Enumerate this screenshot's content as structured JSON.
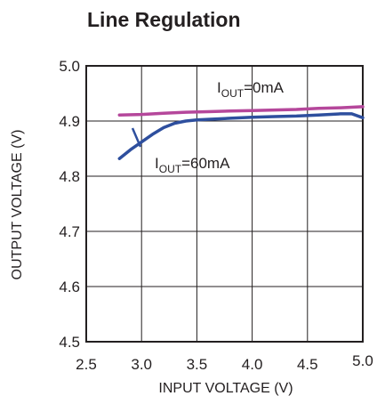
{
  "chart_data": {
    "type": "line",
    "title": "Line Regulation",
    "xlabel": "INPUT VOLTAGE (V)",
    "ylabel": "OUTPUT VOLTAGE (V)",
    "xlim": [
      2.5,
      5.0
    ],
    "ylim": [
      4.5,
      5.0
    ],
    "x_ticks": [
      "2.5",
      "3.0",
      "3.5",
      "4.0",
      "4.5",
      "5.0"
    ],
    "y_ticks": [
      "5.0",
      "4.9",
      "4.8",
      "4.7",
      "4.6",
      "4.5"
    ],
    "grid": true,
    "series": [
      {
        "name": "I_OUT=0mA",
        "color": "#b5479b",
        "x": [
          2.8,
          3.0,
          3.2,
          3.4,
          3.6,
          3.8,
          4.0,
          4.2,
          4.4,
          4.6,
          4.8,
          5.0
        ],
        "y": [
          4.911,
          4.912,
          4.914,
          4.916,
          4.917,
          4.918,
          4.919,
          4.92,
          4.921,
          4.923,
          4.924,
          4.926
        ]
      },
      {
        "name": "I_OUT=60mA",
        "color": "#2e4f9e",
        "x": [
          2.8,
          2.9,
          3.0,
          3.1,
          3.2,
          3.3,
          3.4,
          3.5,
          3.6,
          3.8,
          4.0,
          4.2,
          4.4,
          4.6,
          4.8,
          4.9,
          5.0
        ],
        "y": [
          4.832,
          4.848,
          4.862,
          4.876,
          4.888,
          4.896,
          4.9,
          4.902,
          4.903,
          4.905,
          4.907,
          4.908,
          4.909,
          4.911,
          4.913,
          4.913,
          4.906
        ]
      }
    ],
    "annotations": [
      {
        "main": "I",
        "sub": "OUT",
        "rest": "=0mA"
      },
      {
        "main": "I",
        "sub": "OUT",
        "rest": "=60mA"
      }
    ]
  }
}
